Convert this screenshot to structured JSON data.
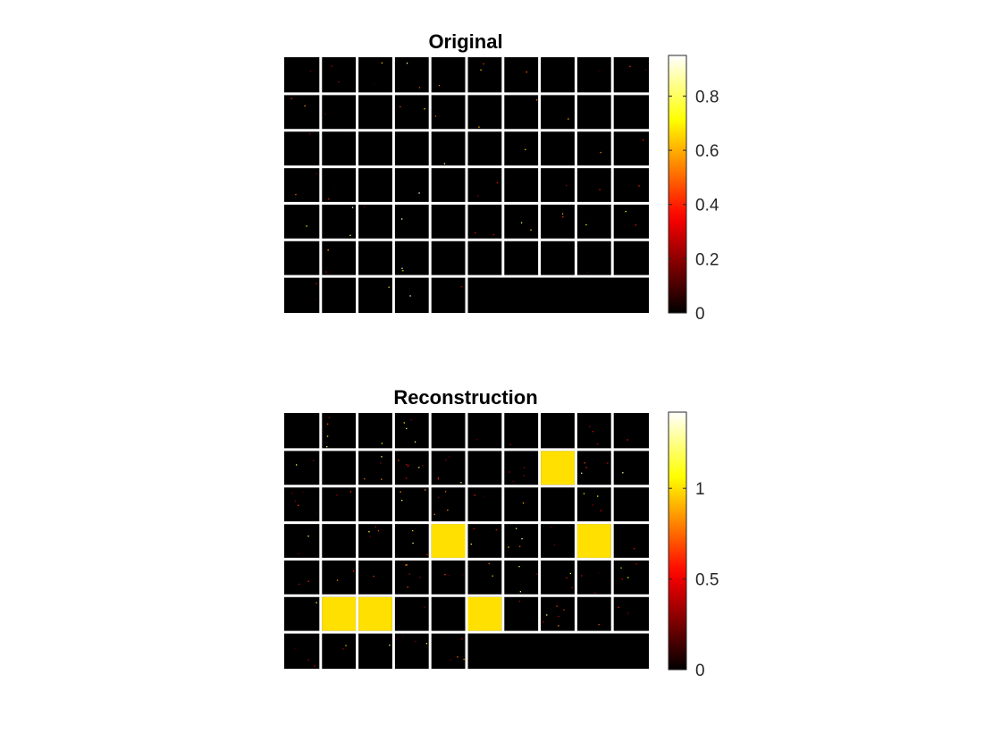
{
  "chart_data": [
    {
      "type": "heatmap",
      "title": "Original",
      "colormap": "hot",
      "grid": {
        "rows": 7,
        "cols": 10,
        "tiles": 65
      },
      "background_color": "#000000",
      "separator_color": "#ffffff",
      "colorbar": {
        "clim": [
          0,
          0.95
        ],
        "ticks": [
          0,
          0.2,
          0.4,
          0.6,
          0.8
        ],
        "tick_labels": [
          "0",
          "0.2",
          "0.4",
          "0.6",
          "0.8"
        ]
      },
      "saturated_tiles": [],
      "tile_fill_value": 0.8,
      "speckle_density": 0.15,
      "speckle_max": 0.95
    },
    {
      "type": "heatmap",
      "title": "Reconstruction",
      "colormap": "hot",
      "grid": {
        "rows": 7,
        "cols": 10,
        "tiles": 65
      },
      "background_color": "#000000",
      "separator_color": "#ffffff",
      "colorbar": {
        "clim": [
          0,
          1.42
        ],
        "ticks": [
          0,
          0.5,
          1
        ],
        "tick_labels": [
          "0",
          "0.5",
          "1"
        ]
      },
      "saturated_tiles": [
        {
          "row": 2,
          "col": 8
        },
        {
          "row": 4,
          "col": 5
        },
        {
          "row": 4,
          "col": 9
        },
        {
          "row": 6,
          "col": 2
        },
        {
          "row": 6,
          "col": 3
        },
        {
          "row": 6,
          "col": 6
        }
      ],
      "tile_fill_value": 1.0,
      "speckle_density": 0.35,
      "speckle_max": 1.3
    }
  ]
}
